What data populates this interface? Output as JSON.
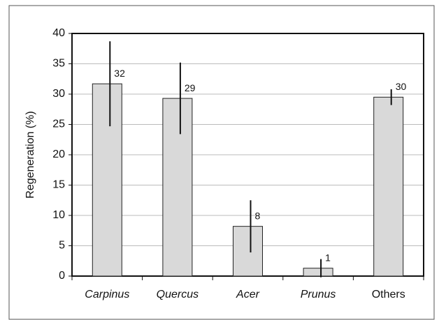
{
  "chart_data": {
    "type": "bar",
    "y_label": "Regeneration (%)",
    "categories": [
      "Carpinus",
      "Quercus",
      "Acer",
      "Prunus",
      "Others"
    ],
    "italic_categories": [
      true,
      true,
      true,
      true,
      false
    ],
    "values": [
      31.7,
      29.3,
      8.2,
      1.3,
      29.5
    ],
    "errors": [
      7,
      5.9,
      4.3,
      1.5,
      1.3
    ],
    "value_labels": [
      "32",
      "29",
      "8",
      "1",
      "30"
    ],
    "color": "#d9d9d9",
    "ylim": [
      0,
      40
    ],
    "yticks": [
      0,
      5,
      10,
      15,
      20,
      25,
      30,
      35,
      40
    ],
    "grid": true
  }
}
